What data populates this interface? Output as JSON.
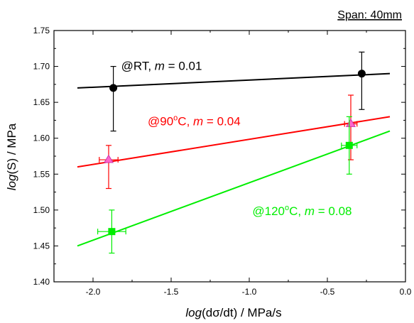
{
  "chart_data": {
    "type": "scatter",
    "title": "Span: 40mm",
    "xlabel": {
      "italic": "log",
      "rest": "(dσ/dt) / MPa/s"
    },
    "ylabel": {
      "italic": "log",
      "rest": "(S) / MPa"
    },
    "xlim": [
      -2.25,
      0.0
    ],
    "ylim": [
      1.4,
      1.75
    ],
    "xticks": [
      -2.0,
      -1.5,
      -1.0,
      -0.5,
      0.0
    ],
    "xtick_labels": [
      "-2.0",
      "-1.5",
      "-1.0",
      "-0.5",
      "0.0"
    ],
    "yticks": [
      1.4,
      1.45,
      1.5,
      1.55,
      1.6,
      1.65,
      1.7,
      1.75
    ],
    "ytick_labels": [
      "1.40",
      "1.45",
      "1.50",
      "1.55",
      "1.60",
      "1.65",
      "1.70",
      "1.75"
    ],
    "grid": false,
    "series": [
      {
        "id": "rt",
        "label_prefix": "@RT,  ",
        "label_sup": "",
        "label_suffix": "",
        "m_symbol": "m",
        "m_value": " = 0.01",
        "color": "#000000",
        "marker": "circle",
        "marker_fill": "#000000",
        "label_anchor": [
          -1.82,
          1.695
        ],
        "points": [
          {
            "x": -1.87,
            "y": 1.67,
            "yerr_low": 1.61,
            "yerr_high": 1.7
          },
          {
            "x": -0.28,
            "y": 1.69,
            "yerr_low": 1.64,
            "yerr_high": 1.72
          }
        ],
        "fit": {
          "x": [
            -2.1,
            -0.1
          ],
          "y": [
            1.67,
            1.69
          ]
        }
      },
      {
        "id": "c90",
        "label_prefix": "@90",
        "label_sup": "o",
        "label_suffix": "C,  ",
        "m_symbol": "m",
        "m_value": " = 0.04",
        "color": "#ff0000",
        "marker": "triangle",
        "marker_fill": "#ff66cc",
        "label_anchor": [
          -1.65,
          1.618
        ],
        "points": [
          {
            "x": -1.9,
            "y": 1.57,
            "yerr_low": 1.53,
            "yerr_high": 1.59,
            "xerr": 0.06
          },
          {
            "x": -0.35,
            "y": 1.62,
            "yerr_low": 1.57,
            "yerr_high": 1.66,
            "xerr": 0.04
          }
        ],
        "fit": {
          "x": [
            -2.1,
            -0.1
          ],
          "y": [
            1.56,
            1.63
          ]
        }
      },
      {
        "id": "c120",
        "label_prefix": "@120",
        "label_sup": "o",
        "label_suffix": "C,  ",
        "m_symbol": "m",
        "m_value": " = 0.08",
        "color": "#00ee00",
        "marker": "square",
        "marker_fill": "#00ee00",
        "label_anchor": [
          -0.98,
          1.493
        ],
        "points": [
          {
            "x": -1.88,
            "y": 1.47,
            "yerr_low": 1.44,
            "yerr_high": 1.5,
            "xerr": 0.09
          },
          {
            "x": -0.36,
            "y": 1.59,
            "yerr_low": 1.55,
            "yerr_high": 1.63,
            "xerr": 0.05
          }
        ],
        "fit": {
          "x": [
            -2.1,
            -0.1
          ],
          "y": [
            1.45,
            1.61
          ]
        }
      }
    ]
  }
}
